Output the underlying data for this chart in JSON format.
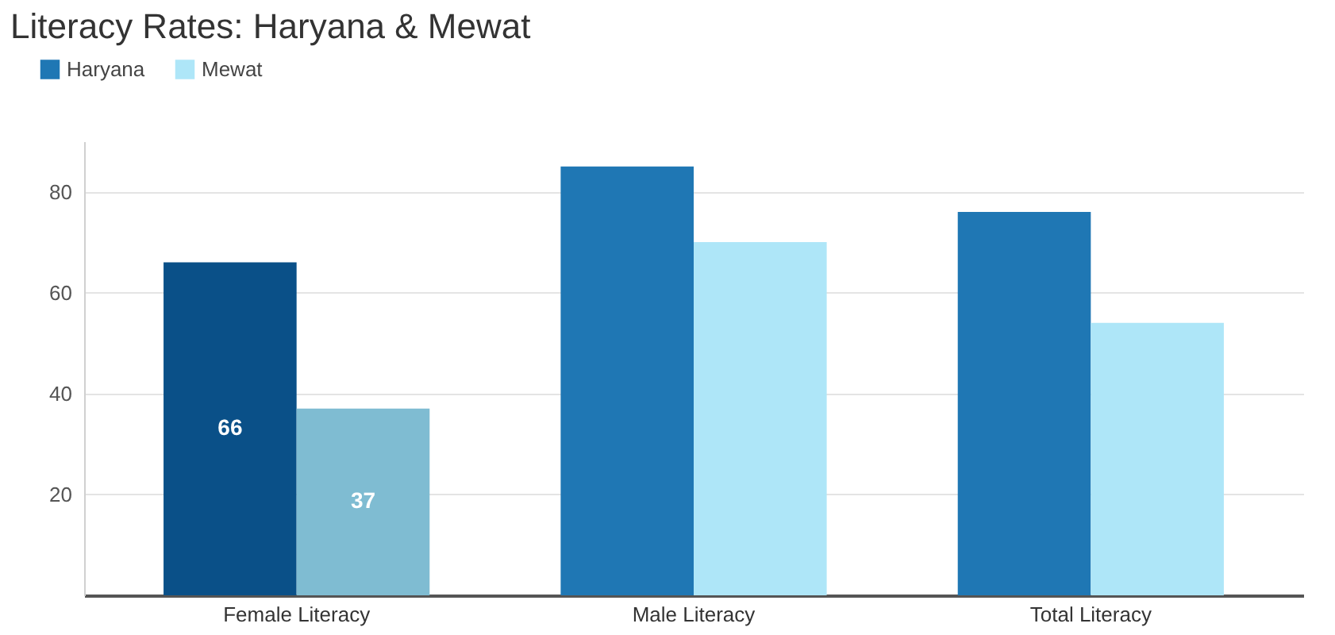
{
  "chart_data": {
    "type": "bar",
    "title": "Literacy Rates: Haryana & Mewat",
    "categories": [
      "Female Literacy",
      "Male Literacy",
      "Total Literacy"
    ],
    "series": [
      {
        "name": "Haryana",
        "color": "#1f77b4",
        "colors": [
          "#0a5088",
          "#1f77b4",
          "#1f77b4"
        ],
        "values": [
          66,
          85,
          76
        ],
        "value_labels": [
          "66",
          null,
          null
        ]
      },
      {
        "name": "Mewat",
        "color": "#aee6f8",
        "colors": [
          "#7fbcd2",
          "#aee6f8",
          "#aee6f8"
        ],
        "values": [
          37,
          70,
          54
        ],
        "value_labels": [
          "37",
          null,
          null
        ]
      }
    ],
    "ylim": [
      0,
      90
    ],
    "yticks": [
      20,
      40,
      60,
      80
    ],
    "grid": "y",
    "legend": "top left"
  }
}
